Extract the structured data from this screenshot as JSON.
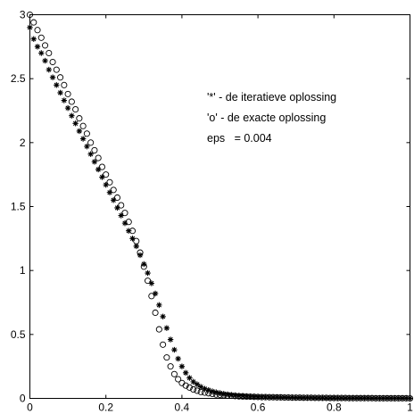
{
  "chart_data": {
    "type": "scatter",
    "title": "",
    "xlabel": "",
    "ylabel": "",
    "xlim": [
      0,
      1
    ],
    "ylim": [
      0,
      3
    ],
    "x_ticks": [
      0,
      0.2,
      0.4,
      0.6,
      0.8,
      1
    ],
    "x_tick_labels": [
      "0",
      "0.2",
      "0.4",
      "0.6",
      "0.8",
      "1"
    ],
    "y_ticks": [
      0,
      0.5,
      1,
      1.5,
      2,
      2.5,
      3
    ],
    "y_tick_labels": [
      "0",
      "0.5",
      "1",
      "1.5",
      "2",
      "2.5",
      "3"
    ],
    "grid": false,
    "legend_placement": "top-right",
    "legend_lines": [
      "'*' - de iteratieve oplossing",
      "'o' - de exacte oplossing",
      "eps   = 0.004"
    ],
    "series": [
      {
        "marker": "o",
        "x": [
          0.0,
          0.01,
          0.02,
          0.03,
          0.04,
          0.05,
          0.06,
          0.07,
          0.08,
          0.09,
          0.1,
          0.11,
          0.12,
          0.13,
          0.14,
          0.15,
          0.16,
          0.17,
          0.18,
          0.19,
          0.2,
          0.21,
          0.22,
          0.23,
          0.24,
          0.25,
          0.26,
          0.27,
          0.28,
          0.29,
          0.3,
          0.31,
          0.32,
          0.33,
          0.34,
          0.35,
          0.36,
          0.37,
          0.38,
          0.39,
          0.4,
          0.41,
          0.42,
          0.43,
          0.44,
          0.45,
          0.46,
          0.47,
          0.48,
          0.49,
          0.5,
          0.51,
          0.52,
          0.53,
          0.54,
          0.55,
          0.56,
          0.57,
          0.58,
          0.59,
          0.6,
          0.61,
          0.62,
          0.63,
          0.64,
          0.65,
          0.66,
          0.67,
          0.68,
          0.69,
          0.7,
          0.71,
          0.72,
          0.73,
          0.74,
          0.75,
          0.76,
          0.77,
          0.78,
          0.79,
          0.8,
          0.81,
          0.82,
          0.83,
          0.84,
          0.85,
          0.86,
          0.87,
          0.88,
          0.89,
          0.9,
          0.91,
          0.92,
          0.93,
          0.94,
          0.95,
          0.96,
          0.97,
          0.98,
          0.99,
          1.0
        ],
        "y": [
          3.0,
          2.94,
          2.88,
          2.82,
          2.76,
          2.7,
          2.63,
          2.57,
          2.51,
          2.45,
          2.38,
          2.32,
          2.26,
          2.19,
          2.13,
          2.07,
          2.0,
          1.94,
          1.88,
          1.81,
          1.75,
          1.69,
          1.63,
          1.57,
          1.51,
          1.45,
          1.38,
          1.31,
          1.23,
          1.14,
          1.03,
          0.92,
          0.8,
          0.67,
          0.54,
          0.42,
          0.32,
          0.25,
          0.19,
          0.15,
          0.12,
          0.1,
          0.085,
          0.07,
          0.06,
          0.05,
          0.045,
          0.04,
          0.035,
          0.03,
          0.028,
          0.025,
          0.022,
          0.02,
          0.018,
          0.016,
          0.015,
          0.014,
          0.013,
          0.012,
          0.011,
          0.01,
          0.01,
          0.009,
          0.009,
          0.008,
          0.008,
          0.007,
          0.007,
          0.006,
          0.006,
          0.006,
          0.005,
          0.005,
          0.005,
          0.004,
          0.004,
          0.004,
          0.004,
          0.003,
          0.003,
          0.003,
          0.003,
          0.003,
          0.002,
          0.002,
          0.002,
          0.002,
          0.002,
          0.002,
          0.002,
          0.001,
          0.001,
          0.001,
          0.001,
          0.001,
          0.001,
          0.001,
          0.001,
          0.001,
          0.0
        ]
      },
      {
        "marker": "*",
        "x": [
          0.0,
          0.01,
          0.02,
          0.03,
          0.04,
          0.05,
          0.06,
          0.07,
          0.08,
          0.09,
          0.1,
          0.11,
          0.12,
          0.13,
          0.14,
          0.15,
          0.16,
          0.17,
          0.18,
          0.19,
          0.2,
          0.21,
          0.22,
          0.23,
          0.24,
          0.25,
          0.26,
          0.27,
          0.28,
          0.29,
          0.3,
          0.31,
          0.32,
          0.33,
          0.34,
          0.35,
          0.36,
          0.37,
          0.38,
          0.39,
          0.4,
          0.41,
          0.42,
          0.43,
          0.44,
          0.45,
          0.46,
          0.47,
          0.48,
          0.49,
          0.5,
          0.51,
          0.52,
          0.53,
          0.54,
          0.55,
          0.56,
          0.57,
          0.58,
          0.59,
          0.6,
          0.61,
          0.62,
          0.63,
          0.64,
          0.65,
          0.66,
          0.67,
          0.68,
          0.69,
          0.7,
          0.71,
          0.72,
          0.73,
          0.74,
          0.75,
          0.76,
          0.77,
          0.78,
          0.79,
          0.8,
          0.81,
          0.82,
          0.83,
          0.84,
          0.85,
          0.86,
          0.87,
          0.88,
          0.89,
          0.9,
          0.91,
          0.92,
          0.93,
          0.94,
          0.95,
          0.96,
          0.97,
          0.98,
          0.99,
          1.0
        ],
        "y": [
          2.9,
          2.81,
          2.75,
          2.7,
          2.64,
          2.57,
          2.51,
          2.45,
          2.39,
          2.33,
          2.27,
          2.21,
          2.15,
          2.09,
          2.03,
          1.97,
          1.91,
          1.85,
          1.79,
          1.73,
          1.67,
          1.61,
          1.55,
          1.49,
          1.43,
          1.37,
          1.31,
          1.25,
          1.19,
          1.12,
          1.05,
          0.98,
          0.9,
          0.82,
          0.73,
          0.64,
          0.55,
          0.46,
          0.38,
          0.31,
          0.25,
          0.2,
          0.16,
          0.13,
          0.11,
          0.09,
          0.075,
          0.065,
          0.055,
          0.048,
          0.042,
          0.036,
          0.032,
          0.028,
          0.025,
          0.022,
          0.02,
          0.018,
          0.016,
          0.015,
          0.013,
          0.012,
          0.011,
          0.01,
          0.009,
          0.009,
          0.008,
          0.008,
          0.007,
          0.007,
          0.006,
          0.006,
          0.005,
          0.005,
          0.005,
          0.004,
          0.004,
          0.004,
          0.003,
          0.003,
          0.003,
          0.003,
          0.003,
          0.002,
          0.002,
          0.002,
          0.002,
          0.002,
          0.002,
          0.002,
          0.001,
          0.001,
          0.001,
          0.001,
          0.001,
          0.001,
          0.001,
          0.001,
          0.001,
          0.001,
          0.0
        ]
      }
    ]
  }
}
